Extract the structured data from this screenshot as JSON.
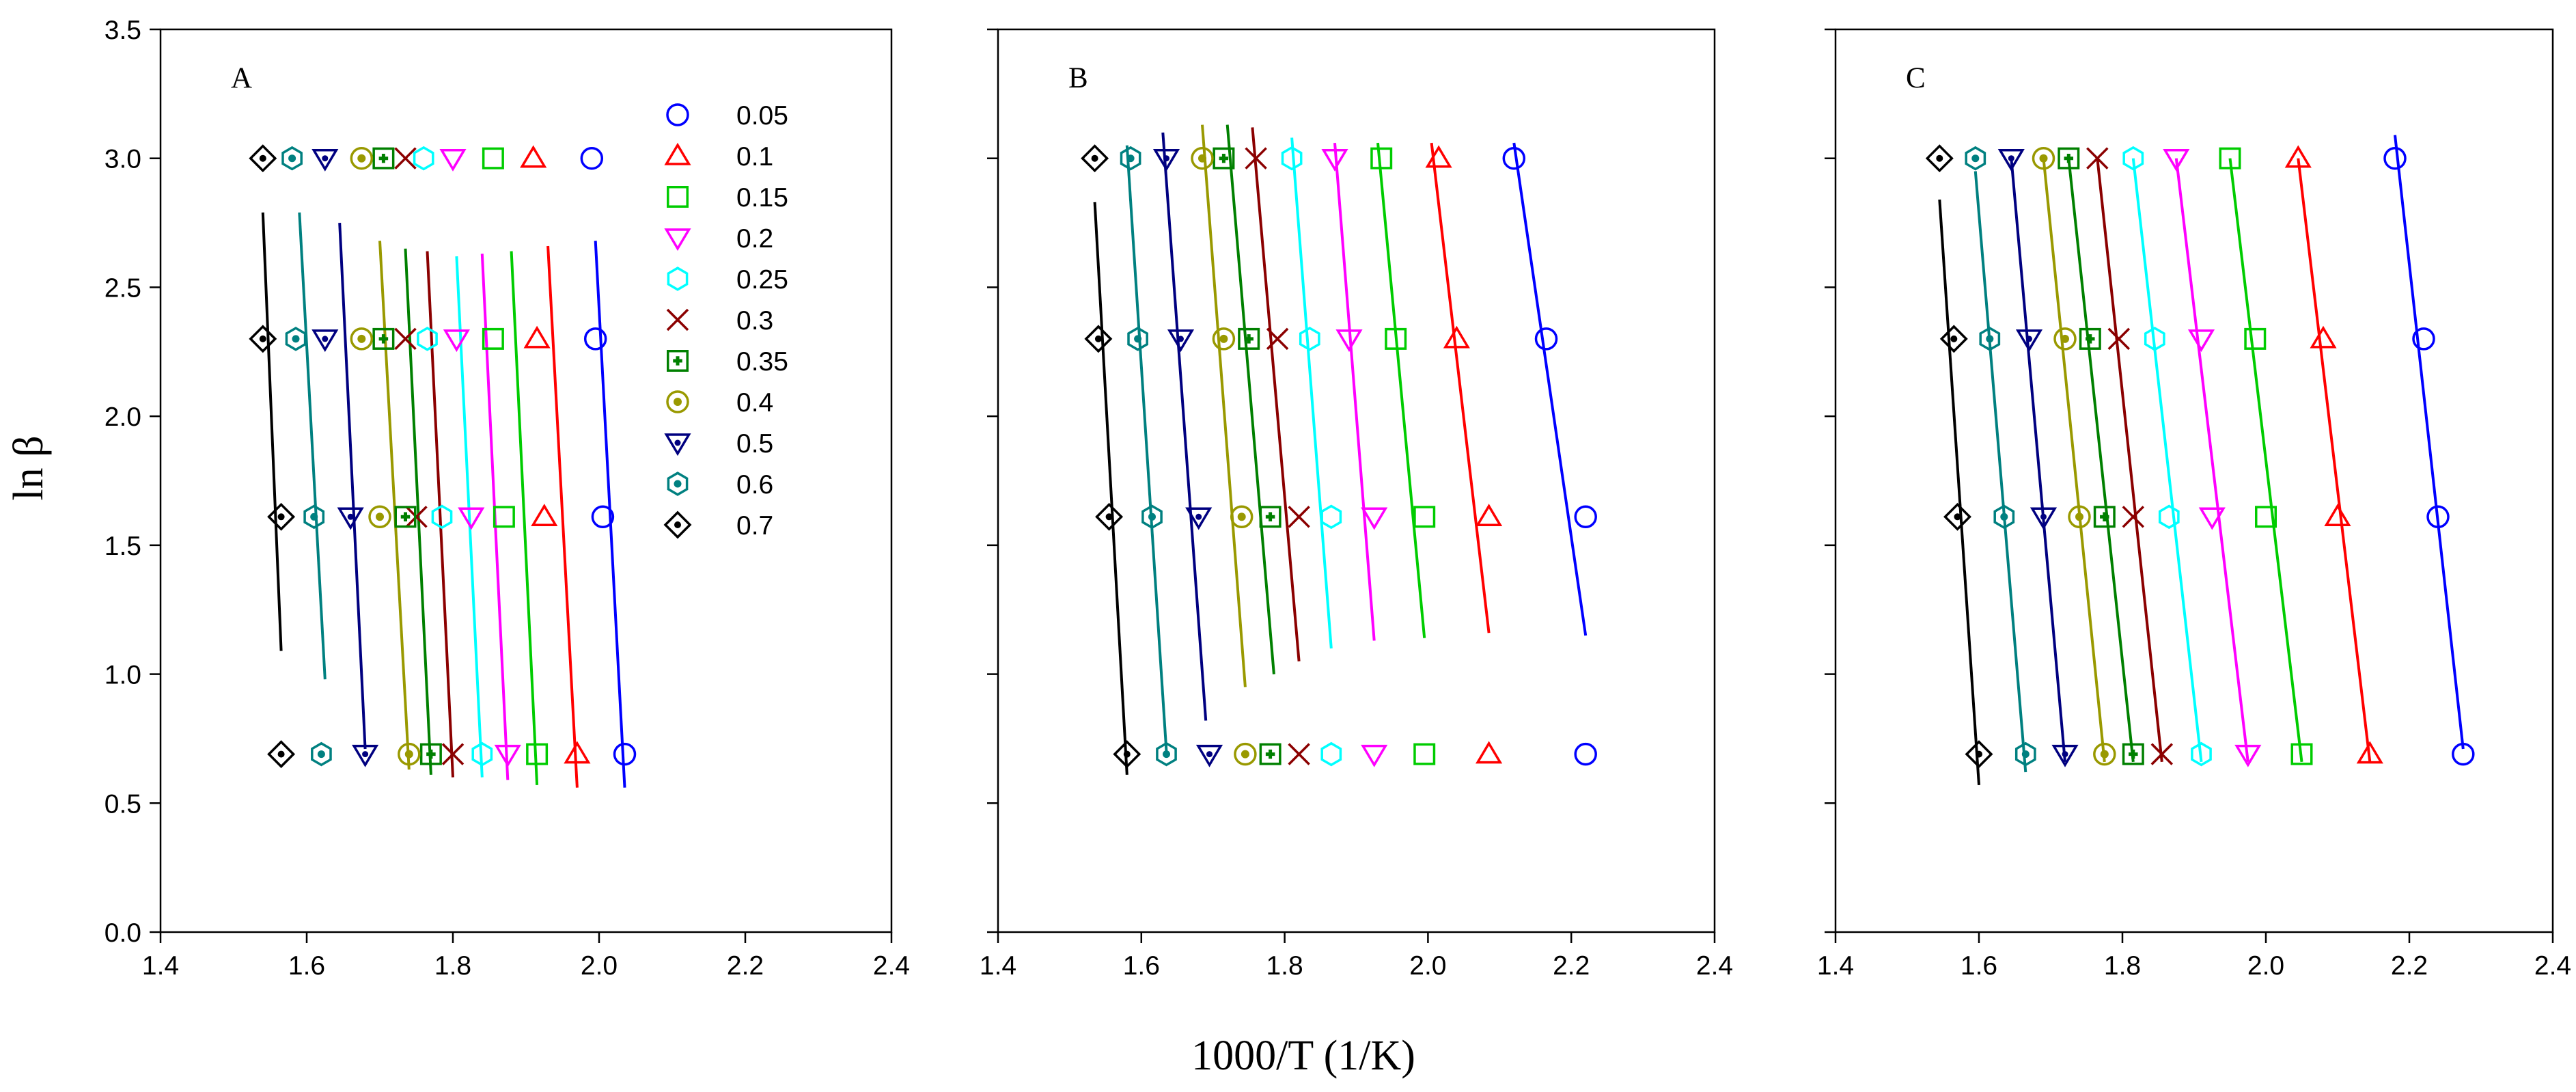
{
  "figure": {
    "ylabel": "ln β",
    "xlabel": "1000/T (1/K)"
  },
  "legend": {
    "entries": [
      {
        "label": "0.05",
        "color": "#0000ff",
        "marker": "circle"
      },
      {
        "label": "0.1",
        "color": "#ff0000",
        "marker": "triangle-up"
      },
      {
        "label": "0.15",
        "color": "#00cc00",
        "marker": "square"
      },
      {
        "label": "0.2",
        "color": "#ff00ff",
        "marker": "triangle-down"
      },
      {
        "label": "0.25",
        "color": "#00ffff",
        "marker": "hexagon"
      },
      {
        "label": "0.3",
        "color": "#8b0000",
        "marker": "x"
      },
      {
        "label": "0.35",
        "color": "#008000",
        "marker": "square-plus"
      },
      {
        "label": "0.4",
        "color": "#999900",
        "marker": "circle-dot"
      },
      {
        "label": "0.5",
        "color": "#000080",
        "marker": "triangle-down-dot"
      },
      {
        "label": "0.6",
        "color": "#008080",
        "marker": "hexagon-dot"
      },
      {
        "label": "0.7",
        "color": "#000000",
        "marker": "diamond-dot"
      }
    ]
  },
  "chart_data": [
    {
      "type": "scatter",
      "panel": "A",
      "xlim": [
        1.4,
        2.4
      ],
      "ylim": [
        0.0,
        3.5
      ],
      "xticks": [
        "1.4",
        "1.6",
        "1.8",
        "2.0",
        "2.2",
        "2.4"
      ],
      "yticks": [
        "0.0",
        "0.5",
        "1.0",
        "1.5",
        "2.0",
        "2.5",
        "3.0",
        "3.5"
      ],
      "y": [
        3.0,
        2.3,
        1.61,
        0.69
      ],
      "series": [
        {
          "name": "0.05",
          "x": [
            1.99,
            1.995,
            2.005,
            2.035
          ],
          "fit": [
            [
              1.995,
              2.68
            ],
            [
              2.035,
              0.56
            ]
          ]
        },
        {
          "name": "0.1",
          "x": [
            1.91,
            1.915,
            1.925,
            1.97
          ],
          "fit": [
            [
              1.93,
              2.66
            ],
            [
              1.97,
              0.56
            ]
          ]
        },
        {
          "name": "0.15",
          "x": [
            1.855,
            1.855,
            1.87,
            1.915
          ],
          "fit": [
            [
              1.88,
              2.64
            ],
            [
              1.915,
              0.57
            ]
          ]
        },
        {
          "name": "0.2",
          "x": [
            1.8,
            1.805,
            1.825,
            1.875
          ],
          "fit": [
            [
              1.84,
              2.63
            ],
            [
              1.875,
              0.59
            ]
          ]
        },
        {
          "name": "0.25",
          "x": [
            1.76,
            1.765,
            1.785,
            1.84
          ],
          "fit": [
            [
              1.805,
              2.62
            ],
            [
              1.84,
              0.6
            ]
          ]
        },
        {
          "name": "0.3",
          "x": [
            1.735,
            1.735,
            1.75,
            1.8
          ],
          "fit": [
            [
              1.765,
              2.64
            ],
            [
              1.8,
              0.6
            ]
          ]
        },
        {
          "name": "0.35",
          "x": [
            1.705,
            1.705,
            1.735,
            1.77
          ],
          "fit": [
            [
              1.735,
              2.65
            ],
            [
              1.77,
              0.61
            ]
          ]
        },
        {
          "name": "0.4",
          "x": [
            1.675,
            1.675,
            1.7,
            1.74
          ],
          "fit": [
            [
              1.7,
              2.68
            ],
            [
              1.74,
              0.63
            ]
          ]
        },
        {
          "name": "0.5",
          "x": [
            1.625,
            1.625,
            1.66,
            1.68
          ],
          "fit": [
            [
              1.645,
              2.75
            ],
            [
              1.68,
              0.71
            ]
          ]
        },
        {
          "name": "0.6",
          "x": [
            1.58,
            1.585,
            1.61,
            1.62
          ],
          "fit": [
            [
              1.59,
              2.79
            ],
            [
              1.625,
              0.98
            ]
          ]
        },
        {
          "name": "0.7",
          "x": [
            1.54,
            1.54,
            1.565,
            1.565
          ],
          "fit": [
            [
              1.54,
              2.79
            ],
            [
              1.565,
              1.09
            ]
          ]
        }
      ]
    },
    {
      "type": "scatter",
      "panel": "B",
      "xlim": [
        1.4,
        2.4
      ],
      "ylim": [
        0.0,
        3.5
      ],
      "xticks": [
        "1.4",
        "1.6",
        "1.8",
        "2.0",
        "2.2",
        "2.4"
      ],
      "yticks": [],
      "y": [
        3.0,
        2.3,
        1.61,
        0.69
      ],
      "series": [
        {
          "name": "0.05",
          "x": [
            2.12,
            2.165,
            2.22,
            2.22
          ],
          "fit": [
            [
              2.12,
              3.06
            ],
            [
              2.22,
              1.15
            ]
          ]
        },
        {
          "name": "0.1",
          "x": [
            2.015,
            2.04,
            2.085,
            2.085
          ],
          "fit": [
            [
              2.005,
              3.06
            ],
            [
              2.085,
              1.16
            ]
          ]
        },
        {
          "name": "0.15",
          "x": [
            1.935,
            1.955,
            1.995,
            1.995
          ],
          "fit": [
            [
              1.93,
              3.06
            ],
            [
              1.995,
              1.14
            ]
          ]
        },
        {
          "name": "0.2",
          "x": [
            1.87,
            1.89,
            1.925,
            1.925
          ],
          "fit": [
            [
              1.87,
              3.06
            ],
            [
              1.925,
              1.13
            ]
          ]
        },
        {
          "name": "0.25",
          "x": [
            1.81,
            1.835,
            1.865,
            1.865
          ],
          "fit": [
            [
              1.81,
              3.08
            ],
            [
              1.865,
              1.1
            ]
          ]
        },
        {
          "name": "0.3",
          "x": [
            1.76,
            1.79,
            1.82,
            1.82
          ],
          "fit": [
            [
              1.755,
              3.12
            ],
            [
              1.82,
              1.05
            ]
          ]
        },
        {
          "name": "0.35",
          "x": [
            1.715,
            1.75,
            1.78,
            1.78
          ],
          "fit": [
            [
              1.72,
              3.13
            ],
            [
              1.785,
              1.0
            ]
          ]
        },
        {
          "name": "0.4",
          "x": [
            1.685,
            1.715,
            1.74,
            1.745
          ],
          "fit": [
            [
              1.685,
              3.13
            ],
            [
              1.745,
              0.95
            ]
          ]
        },
        {
          "name": "0.5",
          "x": [
            1.635,
            1.655,
            1.68,
            1.695
          ],
          "fit": [
            [
              1.63,
              3.1
            ],
            [
              1.69,
              0.82
            ]
          ]
        },
        {
          "name": "0.6",
          "x": [
            1.585,
            1.595,
            1.615,
            1.635
          ],
          "fit": [
            [
              1.58,
              3.05
            ],
            [
              1.635,
              0.7
            ]
          ]
        },
        {
          "name": "0.7",
          "x": [
            1.535,
            1.54,
            1.555,
            1.58
          ],
          "fit": [
            [
              1.535,
              2.83
            ],
            [
              1.58,
              0.61
            ]
          ]
        }
      ]
    },
    {
      "type": "scatter",
      "panel": "C",
      "xlim": [
        1.4,
        2.4
      ],
      "ylim": [
        0.0,
        3.5
      ],
      "xticks": [
        "1.4",
        "1.6",
        "1.8",
        "2.0",
        "2.2",
        "2.4"
      ],
      "yticks": [],
      "y": [
        3.0,
        2.3,
        1.61,
        0.69
      ],
      "series": [
        {
          "name": "0.05",
          "x": [
            2.18,
            2.22,
            2.24,
            2.275
          ],
          "fit": [
            [
              2.18,
              3.09
            ],
            [
              2.275,
              0.71
            ]
          ]
        },
        {
          "name": "0.1",
          "x": [
            2.045,
            2.08,
            2.1,
            2.145
          ],
          "fit": [
            [
              2.045,
              3.0
            ],
            [
              2.145,
              0.66
            ]
          ]
        },
        {
          "name": "0.15",
          "x": [
            1.95,
            1.985,
            2.0,
            2.05
          ],
          "fit": [
            [
              1.95,
              3.0
            ],
            [
              2.05,
              0.66
            ]
          ]
        },
        {
          "name": "0.2",
          "x": [
            1.875,
            1.91,
            1.925,
            1.975
          ],
          "fit": [
            [
              1.875,
              3.0
            ],
            [
              1.975,
              0.66
            ]
          ]
        },
        {
          "name": "0.25",
          "x": [
            1.815,
            1.845,
            1.865,
            1.91
          ],
          "fit": [
            [
              1.815,
              3.0
            ],
            [
              1.91,
              0.66
            ]
          ]
        },
        {
          "name": "0.3",
          "x": [
            1.765,
            1.795,
            1.815,
            1.855
          ],
          "fit": [
            [
              1.765,
              3.0
            ],
            [
              1.855,
              0.66
            ]
          ]
        },
        {
          "name": "0.35",
          "x": [
            1.725,
            1.755,
            1.775,
            1.815
          ],
          "fit": [
            [
              1.725,
              3.0
            ],
            [
              1.815,
              0.66
            ]
          ]
        },
        {
          "name": "0.4",
          "x": [
            1.69,
            1.72,
            1.74,
            1.775
          ],
          "fit": [
            [
              1.69,
              3.0
            ],
            [
              1.775,
              0.66
            ]
          ]
        },
        {
          "name": "0.5",
          "x": [
            1.645,
            1.67,
            1.69,
            1.72
          ],
          "fit": [
            [
              1.645,
              3.0
            ],
            [
              1.72,
              0.66
            ]
          ]
        },
        {
          "name": "0.6",
          "x": [
            1.595,
            1.615,
            1.635,
            1.665
          ],
          "fit": [
            [
              1.595,
              2.95
            ],
            [
              1.665,
              0.62
            ]
          ]
        },
        {
          "name": "0.7",
          "x": [
            1.545,
            1.565,
            1.57,
            1.6
          ],
          "fit": [
            [
              1.545,
              2.84
            ],
            [
              1.6,
              0.57
            ]
          ]
        }
      ]
    }
  ]
}
